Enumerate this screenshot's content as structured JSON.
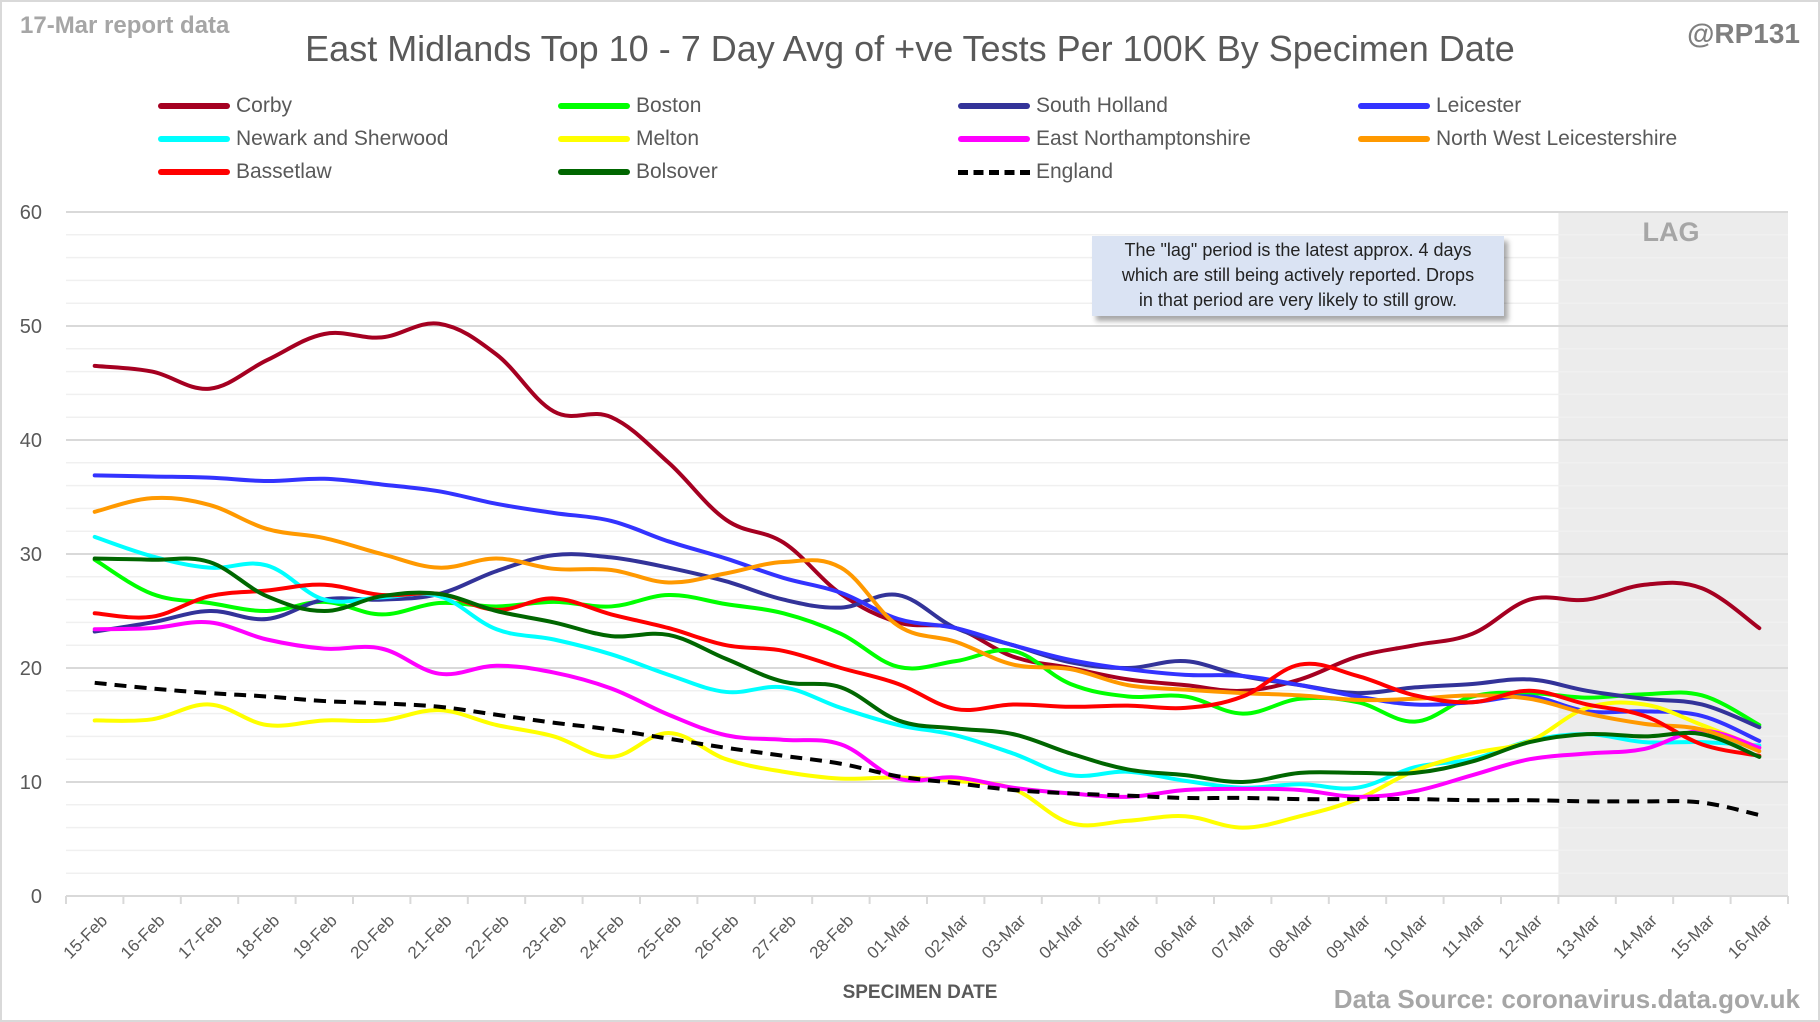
{
  "header": {
    "report_label": "17-Mar report data",
    "handle": "@RP131",
    "source": "Data Source: coronavirus.data.gov.uk"
  },
  "annotation": {
    "lag_label": "LAG",
    "note_lines": [
      "The \"lag\" period is the latest approx. 4 days",
      "which are still being actively reported.  Drops",
      "in that period are very likely to still grow."
    ]
  },
  "chart_data": {
    "type": "line",
    "title": "East Midlands Top 10 - 7 Day Avg of +ve Tests Per 100K By Specimen Date",
    "xlabel": "SPECIMEN DATE",
    "ylabel": "",
    "ylim": [
      0,
      60
    ],
    "yticks": [
      0,
      10,
      20,
      30,
      40,
      50,
      60
    ],
    "grid": true,
    "legend_position": "top",
    "lag_period": {
      "from": "13-Mar",
      "to": "16-Mar",
      "label": "LAG"
    },
    "x": [
      "15-Feb",
      "16-Feb",
      "17-Feb",
      "18-Feb",
      "19-Feb",
      "20-Feb",
      "21-Feb",
      "22-Feb",
      "23-Feb",
      "24-Feb",
      "25-Feb",
      "26-Feb",
      "27-Feb",
      "28-Feb",
      "01-Mar",
      "02-Mar",
      "03-Mar",
      "04-Mar",
      "05-Mar",
      "06-Mar",
      "07-Mar",
      "08-Mar",
      "09-Mar",
      "10-Mar",
      "11-Mar",
      "12-Mar",
      "13-Mar",
      "14-Mar",
      "15-Mar",
      "16-Mar"
    ],
    "series": [
      {
        "name": "Corby",
        "color": "#a50021",
        "dashed": false,
        "values": [
          46.5,
          46,
          44.5,
          47,
          49.3,
          49,
          50.2,
          47.5,
          42.5,
          42,
          38,
          33,
          31,
          26.5,
          24,
          23.5,
          21,
          20,
          19,
          18.5,
          18,
          19,
          21,
          22,
          23,
          26,
          26,
          27.3,
          27,
          23.5
        ]
      },
      {
        "name": "Boston",
        "color": "#00ff00",
        "dashed": false,
        "values": [
          29.5,
          26.5,
          25.7,
          25,
          25.8,
          24.7,
          25.7,
          25.4,
          25.8,
          25.4,
          26.4,
          25.6,
          24.8,
          23,
          20.1,
          20.6,
          21.5,
          18.6,
          17.5,
          17.5,
          16,
          17.3,
          17,
          15.3,
          17.5,
          17.8,
          17.4,
          17.7,
          17.6,
          15
        ]
      },
      {
        "name": "South Holland",
        "color": "#333399",
        "dashed": false,
        "values": [
          23.2,
          24,
          25,
          24.3,
          26,
          26,
          26.5,
          28.5,
          29.9,
          29.7,
          28.8,
          27.6,
          26,
          25.3,
          26.4,
          23.5,
          22,
          20.5,
          20,
          20.6,
          19.3,
          18.5,
          17.8,
          18.3,
          18.6,
          19,
          18,
          17.3,
          16.8,
          14.8
        ]
      },
      {
        "name": "Leicester",
        "color": "#3333ff",
        "dashed": false,
        "values": [
          36.9,
          36.8,
          36.7,
          36.4,
          36.6,
          36.1,
          35.5,
          34.4,
          33.6,
          32.9,
          31.1,
          29.6,
          27.9,
          26.6,
          24.3,
          23.5,
          22,
          20.7,
          19.9,
          19.4,
          19.3,
          18.5,
          17.5,
          16.8,
          17,
          17.5,
          16.2,
          16.2,
          15.8,
          13.6
        ]
      },
      {
        "name": "Newark and Sherwood",
        "color": "#00ffff",
        "dashed": false,
        "values": [
          31.5,
          29.8,
          28.8,
          29,
          26,
          26.2,
          26.3,
          23.4,
          22.5,
          21.2,
          19.4,
          17.9,
          18.3,
          16.5,
          15,
          14.1,
          12.5,
          10.6,
          10.9,
          10.1,
          9.5,
          9.8,
          9.5,
          11.3,
          12,
          13.6,
          14.2,
          13.5,
          13.5,
          13.2
        ]
      },
      {
        "name": "Melton",
        "color": "#ffff00",
        "dashed": false,
        "values": [
          15.4,
          15.5,
          16.8,
          15,
          15.4,
          15.4,
          16.3,
          15,
          14,
          12.2,
          14.3,
          12,
          10.9,
          10.3,
          10.4,
          10.1,
          9.4,
          6.4,
          6.6,
          7,
          6,
          7,
          8.5,
          11,
          12.5,
          13.6,
          16.5,
          16.8,
          15,
          13
        ]
      },
      {
        "name": "East Northamptonshire",
        "color": "#ff00ff",
        "dashed": false,
        "values": [
          23.4,
          23.5,
          24,
          22.5,
          21.7,
          21.7,
          19.5,
          20.2,
          19.6,
          18.2,
          15.9,
          14.1,
          13.7,
          13.3,
          10.3,
          10.4,
          9.5,
          9,
          8.7,
          9.3,
          9.4,
          9.3,
          8.7,
          9.2,
          10.6,
          12,
          12.5,
          12.9,
          14.5,
          13
        ]
      },
      {
        "name": "North West Leicestershire",
        "color": "#ff9900",
        "dashed": false,
        "values": [
          33.7,
          34.9,
          34.3,
          32.2,
          31.4,
          30,
          28.8,
          29.6,
          28.7,
          28.6,
          27.5,
          28.3,
          29.3,
          28.8,
          23.7,
          22.3,
          20.3,
          19.9,
          18.5,
          18.1,
          17.8,
          17.6,
          17.2,
          17.3,
          17.6,
          17.3,
          16,
          15.1,
          14.6,
          12.7
        ]
      },
      {
        "name": "Bassetlaw",
        "color": "#ff0000",
        "dashed": false,
        "values": [
          24.8,
          24.5,
          26.3,
          26.8,
          27.3,
          26.4,
          26.5,
          25.1,
          26.1,
          24.7,
          23.5,
          22,
          21.5,
          20,
          18.6,
          16.4,
          16.8,
          16.6,
          16.7,
          16.5,
          17.5,
          20.3,
          19.3,
          17.6,
          17,
          18,
          16.8,
          15.8,
          13.3,
          12.3
        ]
      },
      {
        "name": "Bolsover",
        "color": "#006600",
        "dashed": false,
        "values": [
          29.6,
          29.5,
          29.3,
          26.3,
          25,
          26.3,
          26.5,
          25,
          24,
          22.8,
          22.9,
          20.8,
          18.8,
          18.3,
          15.4,
          14.7,
          14.2,
          12.5,
          11.1,
          10.6,
          10,
          10.8,
          10.8,
          10.8,
          11.8,
          13.5,
          14.2,
          14,
          14.2,
          12.2
        ]
      },
      {
        "name": "England",
        "color": "#000000",
        "dashed": true,
        "values": [
          18.7,
          18.2,
          17.8,
          17.5,
          17.1,
          16.9,
          16.6,
          15.9,
          15.2,
          14.6,
          13.8,
          13,
          12.3,
          11.6,
          10.5,
          9.9,
          9.3,
          9,
          8.8,
          8.6,
          8.6,
          8.5,
          8.5,
          8.5,
          8.4,
          8.4,
          8.3,
          8.3,
          8.2,
          7.1
        ]
      }
    ]
  }
}
